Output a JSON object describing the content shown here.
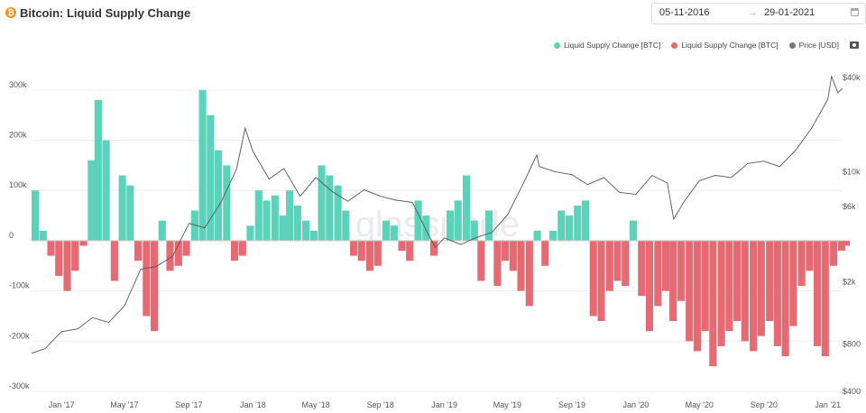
{
  "header": {
    "logo_glyph": "₿",
    "title": "Bitcoin: Liquid Supply Change",
    "date_start": "05-11-2016",
    "date_arrow": "→",
    "date_end": "29-01-2021",
    "icons": [
      "bitcoin-logo-icon",
      "calendar-icon",
      "camera-icon"
    ]
  },
  "watermark": "glassnode",
  "colors": {
    "positive": "#5bd2b9",
    "negative": "#e66a74",
    "price": "#555555",
    "grid": "#eeeeee"
  },
  "chart_data": {
    "type": "bar",
    "title": "Bitcoin: Liquid Supply Change",
    "legend": [
      "Liquid Supply Change [BTC]",
      "Liquid Supply Change [BTC]",
      "Price [USD]"
    ],
    "legend_position": "top-right",
    "x_range": [
      "2016-11-05",
      "2021-01-29"
    ],
    "x_ticks": [
      "Jan '17",
      "May '17",
      "Sep '17",
      "Jan '18",
      "May '18",
      "Sep '18",
      "Jan '19",
      "May '19",
      "Sep '19",
      "Jan '20",
      "May '20",
      "Sep '20",
      "Jan '21"
    ],
    "y_left": {
      "label": "",
      "range": [
        -300000,
        350000
      ],
      "ticks": [
        "-300k",
        "-200k",
        "-100k",
        "0",
        "100k",
        "200k",
        "300k"
      ]
    },
    "y_right": {
      "label": "",
      "scale": "log",
      "range": [
        400,
        48000
      ],
      "ticks": [
        "$400",
        "$800",
        "$2k",
        "$6k",
        "$10k",
        "$40k"
      ]
    },
    "grid": true,
    "series": [
      {
        "name": "Liquid Supply Change [BTC]",
        "kind": "bar",
        "x": [
          "2016-11-05",
          "2016-11-20",
          "2016-12-05",
          "2016-12-20",
          "2017-01-05",
          "2017-01-20",
          "2017-02-05",
          "2017-02-20",
          "2017-03-05",
          "2017-03-20",
          "2017-04-05",
          "2017-04-20",
          "2017-05-05",
          "2017-05-20",
          "2017-06-05",
          "2017-06-20",
          "2017-07-05",
          "2017-07-20",
          "2017-08-05",
          "2017-08-20",
          "2017-09-05",
          "2017-09-20",
          "2017-10-05",
          "2017-10-20",
          "2017-11-05",
          "2017-11-20",
          "2017-12-05",
          "2017-12-20",
          "2018-01-05",
          "2018-01-20",
          "2018-02-05",
          "2018-02-20",
          "2018-03-05",
          "2018-03-20",
          "2018-04-05",
          "2018-04-20",
          "2018-05-05",
          "2018-05-20",
          "2018-06-05",
          "2018-06-20",
          "2018-07-05",
          "2018-07-20",
          "2018-08-05",
          "2018-08-20",
          "2018-09-05",
          "2018-09-20",
          "2018-10-05",
          "2018-10-20",
          "2018-11-05",
          "2018-11-20",
          "2018-12-05",
          "2018-12-20",
          "2019-01-05",
          "2019-01-20",
          "2019-02-05",
          "2019-02-20",
          "2019-03-05",
          "2019-03-20",
          "2019-04-05",
          "2019-04-20",
          "2019-05-05",
          "2019-05-20",
          "2019-06-05",
          "2019-06-20",
          "2019-07-05",
          "2019-07-20",
          "2019-08-05",
          "2019-08-20",
          "2019-09-05",
          "2019-09-20",
          "2019-10-05",
          "2019-10-20",
          "2019-11-05",
          "2019-11-20",
          "2019-12-05",
          "2019-12-20",
          "2020-01-05",
          "2020-01-20",
          "2020-02-05",
          "2020-02-20",
          "2020-03-05",
          "2020-03-20",
          "2020-04-05",
          "2020-04-20",
          "2020-05-05",
          "2020-05-20",
          "2020-06-05",
          "2020-06-20",
          "2020-07-05",
          "2020-07-20",
          "2020-08-05",
          "2020-08-20",
          "2020-09-05",
          "2020-09-20",
          "2020-10-05",
          "2020-10-20",
          "2020-11-05",
          "2020-11-20",
          "2020-12-05",
          "2020-12-20",
          "2021-01-05",
          "2021-01-20",
          "2021-01-29"
        ],
        "values": [
          100000,
          20000,
          -30000,
          -70000,
          -100000,
          -60000,
          -10000,
          160000,
          280000,
          200000,
          -80000,
          130000,
          110000,
          -40000,
          -150000,
          -180000,
          40000,
          -60000,
          -50000,
          -30000,
          60000,
          300000,
          250000,
          180000,
          150000,
          -40000,
          -30000,
          30000,
          100000,
          80000,
          90000,
          50000,
          100000,
          70000,
          40000,
          20000,
          150000,
          130000,
          110000,
          60000,
          -30000,
          -40000,
          -60000,
          -50000,
          40000,
          30000,
          -20000,
          -40000,
          80000,
          50000,
          -30000,
          0,
          60000,
          80000,
          130000,
          40000,
          -80000,
          60000,
          -90000,
          -40000,
          -60000,
          -100000,
          -130000,
          20000,
          -50000,
          20000,
          60000,
          50000,
          70000,
          80000,
          -150000,
          -160000,
          -100000,
          -80000,
          -90000,
          40000,
          -110000,
          -180000,
          -130000,
          -100000,
          -160000,
          -120000,
          -200000,
          -220000,
          -180000,
          -250000,
          -210000,
          -180000,
          -160000,
          -200000,
          -220000,
          -190000,
          -160000,
          -210000,
          -230000,
          -170000,
          -90000,
          -60000,
          -210000,
          -230000,
          -50000,
          -20000,
          -10000
        ]
      },
      {
        "name": "Price [USD]",
        "kind": "line",
        "x": [
          "2016-11-05",
          "2016-12-01",
          "2017-01-01",
          "2017-02-01",
          "2017-03-01",
          "2017-04-01",
          "2017-05-01",
          "2017-06-01",
          "2017-07-01",
          "2017-08-01",
          "2017-09-01",
          "2017-10-01",
          "2017-11-01",
          "2017-12-01",
          "2017-12-17",
          "2018-01-01",
          "2018-02-01",
          "2018-03-01",
          "2018-04-01",
          "2018-05-01",
          "2018-06-01",
          "2018-07-01",
          "2018-08-01",
          "2018-09-01",
          "2018-10-01",
          "2018-11-01",
          "2018-12-01",
          "2018-12-15",
          "2019-01-01",
          "2019-02-01",
          "2019-03-01",
          "2019-04-01",
          "2019-05-01",
          "2019-06-01",
          "2019-06-26",
          "2019-07-01",
          "2019-08-01",
          "2019-09-01",
          "2019-10-01",
          "2019-11-01",
          "2019-12-01",
          "2020-01-01",
          "2020-02-01",
          "2020-03-01",
          "2020-03-13",
          "2020-04-01",
          "2020-05-01",
          "2020-06-01",
          "2020-07-01",
          "2020-08-01",
          "2020-09-01",
          "2020-10-01",
          "2020-11-01",
          "2020-12-01",
          "2021-01-01",
          "2021-01-08",
          "2021-01-20",
          "2021-01-29"
        ],
        "values": [
          700,
          750,
          960,
          1000,
          1180,
          1100,
          1400,
          2400,
          2500,
          2900,
          4700,
          4400,
          6400,
          10500,
          19000,
          13500,
          9000,
          10500,
          7000,
          9200,
          7500,
          6500,
          7700,
          7000,
          6600,
          6400,
          4000,
          3300,
          3800,
          3450,
          3800,
          4100,
          5300,
          8500,
          12800,
          10800,
          10000,
          9600,
          8300,
          9200,
          7400,
          7200,
          9500,
          8500,
          5000,
          6400,
          8800,
          9500,
          9200,
          11300,
          11700,
          10800,
          13800,
          19000,
          29000,
          40500,
          32000,
          34000
        ]
      }
    ]
  }
}
